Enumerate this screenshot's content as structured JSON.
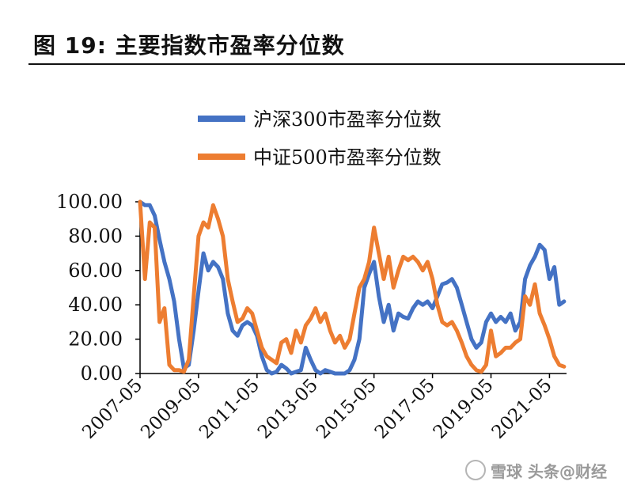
{
  "figure": {
    "title": "图 19:  主要指数市盈率分位数",
    "watermark": "雪球  头条@财经"
  },
  "colors": {
    "hs300": "#4472c4",
    "zz500": "#ed7d31",
    "axis": "#000000"
  },
  "chart_data": {
    "type": "line",
    "title": "",
    "xlabel": "",
    "ylabel": "",
    "ylim": [
      0,
      100
    ],
    "yticks": [
      "0.00",
      "20.00",
      "40.00",
      "60.00",
      "80.00",
      "100.00"
    ],
    "xrange": [
      "2007-05",
      "2021-12"
    ],
    "xticks": [
      "2007-05",
      "2009-05",
      "2011-05",
      "2013-05",
      "2015-05",
      "2017-05",
      "2019-05",
      "2021-05"
    ],
    "grid": false,
    "legend_position": "top-center",
    "series": [
      {
        "name": "沪深300市盈率分位数",
        "color": "#4472c4",
        "points": [
          [
            "2007-05",
            100
          ],
          [
            "2007-07",
            98
          ],
          [
            "2007-09",
            98
          ],
          [
            "2007-11",
            92
          ],
          [
            "2008-01",
            78
          ],
          [
            "2008-03",
            65
          ],
          [
            "2008-05",
            55
          ],
          [
            "2008-07",
            42
          ],
          [
            "2008-09",
            20
          ],
          [
            "2008-11",
            3
          ],
          [
            "2009-01",
            5
          ],
          [
            "2009-03",
            25
          ],
          [
            "2009-05",
            48
          ],
          [
            "2009-07",
            70
          ],
          [
            "2009-09",
            60
          ],
          [
            "2009-11",
            65
          ],
          [
            "2010-01",
            62
          ],
          [
            "2010-03",
            55
          ],
          [
            "2010-05",
            35
          ],
          [
            "2010-07",
            25
          ],
          [
            "2010-09",
            22
          ],
          [
            "2010-11",
            28
          ],
          [
            "2011-01",
            30
          ],
          [
            "2011-03",
            28
          ],
          [
            "2011-05",
            22
          ],
          [
            "2011-07",
            10
          ],
          [
            "2011-09",
            2
          ],
          [
            "2011-11",
            0
          ],
          [
            "2012-01",
            1
          ],
          [
            "2012-03",
            5
          ],
          [
            "2012-05",
            3
          ],
          [
            "2012-07",
            0
          ],
          [
            "2012-09",
            1
          ],
          [
            "2012-11",
            2
          ],
          [
            "2013-01",
            15
          ],
          [
            "2013-03",
            8
          ],
          [
            "2013-05",
            2
          ],
          [
            "2013-07",
            0
          ],
          [
            "2013-09",
            2
          ],
          [
            "2013-11",
            1
          ],
          [
            "2014-01",
            0
          ],
          [
            "2014-03",
            0
          ],
          [
            "2014-05",
            0
          ],
          [
            "2014-07",
            2
          ],
          [
            "2014-09",
            8
          ],
          [
            "2014-11",
            20
          ],
          [
            "2015-01",
            50
          ],
          [
            "2015-03",
            58
          ],
          [
            "2015-05",
            65
          ],
          [
            "2015-07",
            45
          ],
          [
            "2015-09",
            30
          ],
          [
            "2015-11",
            40
          ],
          [
            "2016-01",
            25
          ],
          [
            "2016-03",
            35
          ],
          [
            "2016-05",
            33
          ],
          [
            "2016-07",
            32
          ],
          [
            "2016-09",
            38
          ],
          [
            "2016-11",
            42
          ],
          [
            "2017-01",
            40
          ],
          [
            "2017-03",
            42
          ],
          [
            "2017-05",
            38
          ],
          [
            "2017-07",
            45
          ],
          [
            "2017-09",
            52
          ],
          [
            "2017-11",
            53
          ],
          [
            "2018-01",
            55
          ],
          [
            "2018-03",
            50
          ],
          [
            "2018-05",
            40
          ],
          [
            "2018-07",
            30
          ],
          [
            "2018-09",
            20
          ],
          [
            "2018-11",
            15
          ],
          [
            "2019-01",
            18
          ],
          [
            "2019-03",
            30
          ],
          [
            "2019-05",
            35
          ],
          [
            "2019-07",
            30
          ],
          [
            "2019-09",
            33
          ],
          [
            "2019-11",
            30
          ],
          [
            "2020-01",
            35
          ],
          [
            "2020-03",
            25
          ],
          [
            "2020-05",
            30
          ],
          [
            "2020-07",
            55
          ],
          [
            "2020-09",
            63
          ],
          [
            "2020-11",
            68
          ],
          [
            "2021-01",
            75
          ],
          [
            "2021-03",
            72
          ],
          [
            "2021-05",
            55
          ],
          [
            "2021-07",
            62
          ],
          [
            "2021-09",
            40
          ],
          [
            "2021-11",
            42
          ]
        ]
      },
      {
        "name": "中证500市盈率分位数",
        "color": "#ed7d31",
        "points": [
          [
            "2007-05",
            100
          ],
          [
            "2007-07",
            55
          ],
          [
            "2007-09",
            88
          ],
          [
            "2007-11",
            85
          ],
          [
            "2008-01",
            30
          ],
          [
            "2008-03",
            38
          ],
          [
            "2008-05",
            5
          ],
          [
            "2008-07",
            2
          ],
          [
            "2008-09",
            2
          ],
          [
            "2008-11",
            1
          ],
          [
            "2009-01",
            8
          ],
          [
            "2009-03",
            45
          ],
          [
            "2009-05",
            80
          ],
          [
            "2009-07",
            88
          ],
          [
            "2009-09",
            85
          ],
          [
            "2009-11",
            98
          ],
          [
            "2010-01",
            90
          ],
          [
            "2010-03",
            80
          ],
          [
            "2010-05",
            55
          ],
          [
            "2010-07",
            42
          ],
          [
            "2010-09",
            30
          ],
          [
            "2010-11",
            32
          ],
          [
            "2011-01",
            38
          ],
          [
            "2011-03",
            35
          ],
          [
            "2011-05",
            25
          ],
          [
            "2011-07",
            15
          ],
          [
            "2011-09",
            10
          ],
          [
            "2011-11",
            8
          ],
          [
            "2012-01",
            6
          ],
          [
            "2012-03",
            18
          ],
          [
            "2012-05",
            20
          ],
          [
            "2012-07",
            12
          ],
          [
            "2012-09",
            25
          ],
          [
            "2012-11",
            18
          ],
          [
            "2013-01",
            28
          ],
          [
            "2013-03",
            32
          ],
          [
            "2013-05",
            38
          ],
          [
            "2013-07",
            30
          ],
          [
            "2013-09",
            35
          ],
          [
            "2013-11",
            25
          ],
          [
            "2014-01",
            18
          ],
          [
            "2014-03",
            22
          ],
          [
            "2014-05",
            15
          ],
          [
            "2014-07",
            20
          ],
          [
            "2014-09",
            35
          ],
          [
            "2014-11",
            50
          ],
          [
            "2015-01",
            55
          ],
          [
            "2015-03",
            65
          ],
          [
            "2015-05",
            85
          ],
          [
            "2015-07",
            70
          ],
          [
            "2015-09",
            55
          ],
          [
            "2015-11",
            68
          ],
          [
            "2016-01",
            50
          ],
          [
            "2016-03",
            60
          ],
          [
            "2016-05",
            68
          ],
          [
            "2016-07",
            66
          ],
          [
            "2016-09",
            68
          ],
          [
            "2016-11",
            65
          ],
          [
            "2017-01",
            60
          ],
          [
            "2017-03",
            65
          ],
          [
            "2017-05",
            55
          ],
          [
            "2017-07",
            40
          ],
          [
            "2017-09",
            30
          ],
          [
            "2017-11",
            28
          ],
          [
            "2018-01",
            30
          ],
          [
            "2018-03",
            25
          ],
          [
            "2018-05",
            18
          ],
          [
            "2018-07",
            10
          ],
          [
            "2018-09",
            5
          ],
          [
            "2018-11",
            2
          ],
          [
            "2019-01",
            1
          ],
          [
            "2019-03",
            5
          ],
          [
            "2019-05",
            25
          ],
          [
            "2019-07",
            10
          ],
          [
            "2019-09",
            12
          ],
          [
            "2019-11",
            15
          ],
          [
            "2020-01",
            15
          ],
          [
            "2020-03",
            18
          ],
          [
            "2020-05",
            20
          ],
          [
            "2020-07",
            45
          ],
          [
            "2020-09",
            40
          ],
          [
            "2020-11",
            52
          ],
          [
            "2021-01",
            35
          ],
          [
            "2021-03",
            28
          ],
          [
            "2021-05",
            20
          ],
          [
            "2021-07",
            10
          ],
          [
            "2021-09",
            5
          ],
          [
            "2021-11",
            4
          ]
        ]
      }
    ]
  }
}
